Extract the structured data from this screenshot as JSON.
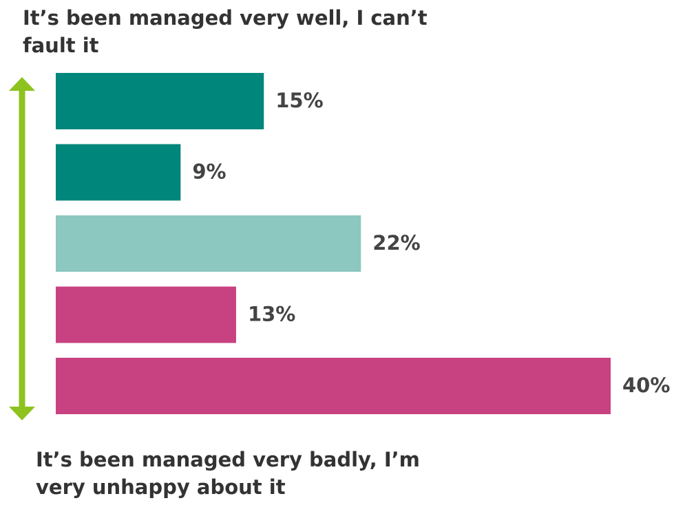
{
  "chart_data": {
    "type": "bar",
    "orientation": "horizontal",
    "annotations": [
      "It’s been managed very well, I can’t fault it",
      "It’s been managed very badly, I’m very unhappy about it"
    ],
    "categories": [
      null,
      null,
      null,
      null,
      null
    ],
    "values": [
      15,
      9,
      22,
      13,
      40
    ],
    "value_labels": [
      "15%",
      "9%",
      "22%",
      "13%",
      "40%"
    ],
    "colors": [
      "#00867a",
      "#00867a",
      "#8cc8bf",
      "#c84282",
      "#c84282"
    ],
    "xlim": [
      0,
      40
    ]
  }
}
